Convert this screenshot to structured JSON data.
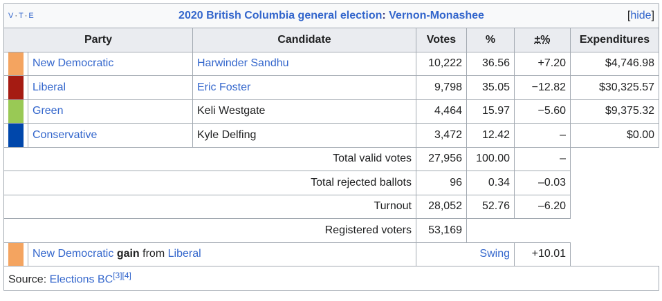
{
  "box": {
    "vte": [
      "V",
      "T",
      "E"
    ],
    "title_year": "2020 British Columbia general election",
    "title_sep": ":",
    "title_riding": "Vernon-Monashee",
    "hide_label": "hide"
  },
  "headers": {
    "party": "Party",
    "candidate": "Candidate",
    "votes": "Votes",
    "percent": "%",
    "change": "±%",
    "expenditures": "Expenditures"
  },
  "rows": [
    {
      "party": "New Democratic",
      "color": "#F4A460",
      "candidate": "Harwinder Sandhu",
      "candidate_linked": true,
      "votes": "10,222",
      "percent": "36.56",
      "change": "+7.20",
      "expenditures": "$4,746.98"
    },
    {
      "party": "Liberal",
      "color": "#A51B12",
      "candidate": "Eric Foster",
      "candidate_linked": true,
      "votes": "9,798",
      "percent": "35.05",
      "change": "−12.82",
      "expenditures": "$30,325.57"
    },
    {
      "party": "Green",
      "color": "#99C955",
      "candidate": "Keli Westgate",
      "candidate_linked": false,
      "votes": "4,464",
      "percent": "15.97",
      "change": "−5.60",
      "expenditures": "$9,375.32"
    },
    {
      "party": "Conservative",
      "color": "#0047AB",
      "candidate": "Kyle Delfing",
      "candidate_linked": false,
      "votes": "3,472",
      "percent": "12.42",
      "change": "–",
      "expenditures": "$0.00"
    }
  ],
  "totals": [
    {
      "label": "Total valid votes",
      "votes": "27,956",
      "percent": "100.00",
      "change": "–"
    },
    {
      "label": "Total rejected ballots",
      "votes": "96",
      "percent": "0.34",
      "change": "–0.03"
    },
    {
      "label": "Turnout",
      "votes": "28,052",
      "percent": "52.76",
      "change": "–6.20"
    },
    {
      "label": "Registered voters",
      "votes": "53,169"
    }
  ],
  "gain": {
    "color": "#F4A460",
    "winner": "New Democratic",
    "gain_word": "gain",
    "from_word": "from",
    "loser": "Liberal",
    "swing_label": "Swing",
    "swing_value": "+10.01"
  },
  "source": {
    "prefix": "Source:",
    "link": "Elections BC",
    "refs": "[3][4]"
  }
}
